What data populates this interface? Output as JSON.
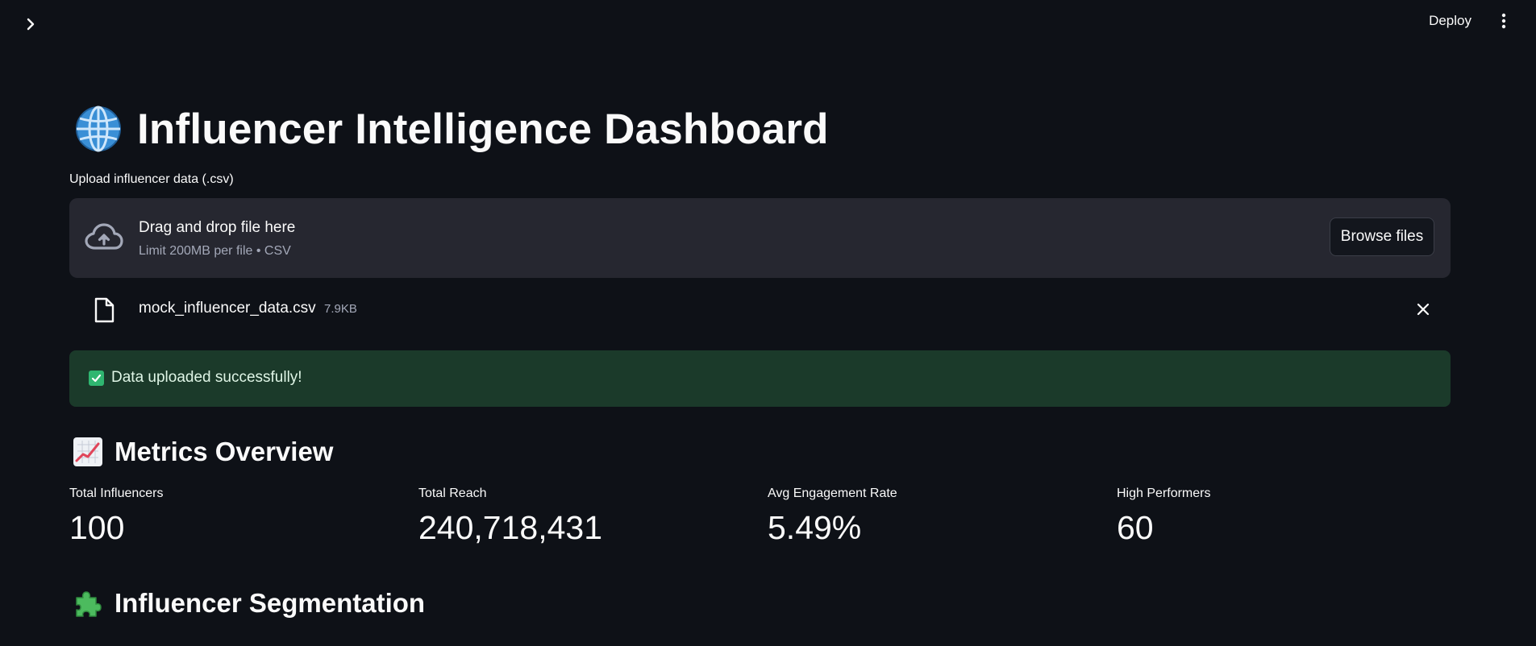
{
  "topbar": {
    "deploy_label": "Deploy"
  },
  "header": {
    "title": "Influencer Intelligence Dashboard",
    "icon": "globe-icon"
  },
  "uploader": {
    "label": "Upload influencer data (.csv)",
    "drop_title": "Drag and drop file here",
    "drop_limit": "Limit 200MB per file • CSV",
    "browse_label": "Browse files"
  },
  "file": {
    "name": "mock_influencer_data.csv",
    "size": "7.9KB"
  },
  "alert": {
    "message": "Data uploaded successfully!",
    "color": "#1b3a2a"
  },
  "sections": {
    "metrics_title": "Metrics Overview",
    "segmentation_title": "Influencer Segmentation"
  },
  "metrics": [
    {
      "label": "Total Influencers",
      "value": "100"
    },
    {
      "label": "Total Reach",
      "value": "240,718,431"
    },
    {
      "label": "Avg Engagement Rate",
      "value": "5.49%"
    },
    {
      "label": "High Performers",
      "value": "60"
    }
  ],
  "colors": {
    "background": "#0e1117",
    "surface": "#262730",
    "success_bg": "#1b3a2a",
    "check": "#2fb670"
  }
}
